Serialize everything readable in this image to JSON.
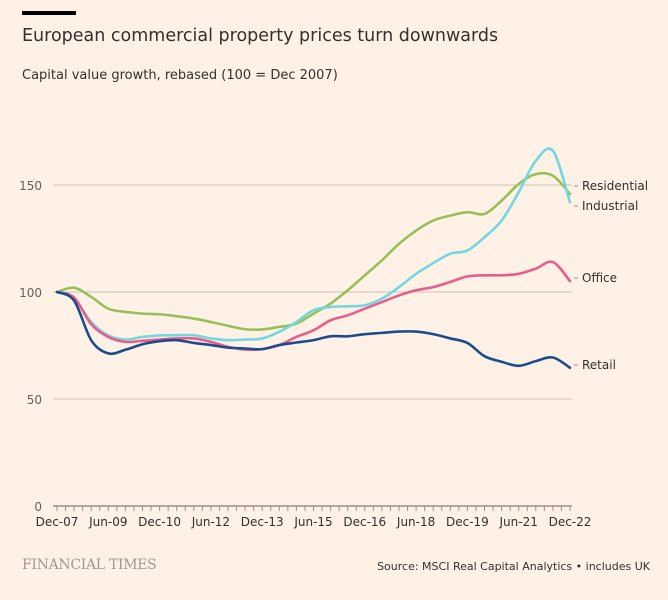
{
  "title": "European commercial property prices turn downwards",
  "subtitle": "Capital value growth, rebased (100 = Dec 2007)",
  "source": "Source: MSCI Real Capital Analytics • includes UK",
  "logo": "FINANCIAL TIMES",
  "chart_data": {
    "type": "line",
    "title": "European commercial property prices turn downwards",
    "subtitle": "Capital value growth, rebased (100 = Dec 2007)",
    "xlabel": "",
    "ylabel": "",
    "x_ticks": [
      "Dec-07",
      "Jun-09",
      "Dec-10",
      "Jun-12",
      "Dec-13",
      "Jun-15",
      "Dec-16",
      "Jun-18",
      "Dec-19",
      "Jun-21",
      "Dec-22"
    ],
    "y_ticks": [
      0,
      50,
      100,
      150
    ],
    "ylim": [
      0,
      170
    ],
    "grid": "horizontal",
    "legend": "direct labels at right",
    "x": [
      "Dec-07",
      "Jun-08",
      "Dec-08",
      "Jun-09",
      "Dec-09",
      "Jun-10",
      "Dec-10",
      "Jun-11",
      "Dec-11",
      "Jun-12",
      "Dec-12",
      "Jun-13",
      "Dec-13",
      "Jun-14",
      "Dec-14",
      "Jun-15",
      "Dec-15",
      "Jun-16",
      "Dec-16",
      "Jun-17",
      "Dec-17",
      "Jun-18",
      "Dec-18",
      "Jun-19",
      "Dec-19",
      "Jun-20",
      "Dec-20",
      "Jun-21",
      "Dec-21",
      "Jun-22",
      "Dec-22"
    ],
    "series": [
      {
        "name": "Residential",
        "color": "#96c15a",
        "values": [
          100,
          102,
          97.7,
          92.2,
          90.7,
          89.9,
          89.6,
          88.7,
          87.6,
          86,
          84.2,
          82.6,
          82.5,
          83.7,
          85.2,
          89.9,
          94.6,
          100.8,
          107.8,
          114.8,
          122.5,
          128.7,
          133.4,
          135.7,
          137.3,
          136.5,
          142.7,
          150.5,
          155.1,
          154.3,
          145.8
        ]
      },
      {
        "name": "Industrial",
        "color": "#72d8e0",
        "values": [
          100,
          96.9,
          86,
          79.8,
          77.8,
          79,
          79.7,
          79.8,
          79.8,
          78.3,
          77.5,
          77.8,
          78.3,
          81.4,
          86,
          91.5,
          93,
          93.3,
          93.8,
          96.9,
          102.3,
          108.5,
          113.5,
          117.9,
          119.4,
          125.6,
          133.4,
          146.6,
          161.3,
          166,
          141.9
        ]
      },
      {
        "name": "Office",
        "color": "#e95d8c",
        "values": [
          100,
          97.4,
          85,
          79,
          76.7,
          77.2,
          77.8,
          78.3,
          78.3,
          76.7,
          74.4,
          73.1,
          73.3,
          75.2,
          79,
          82.1,
          86.8,
          89.1,
          92.2,
          95.3,
          98.4,
          100.8,
          102.3,
          104.7,
          107.3,
          107.8,
          107.8,
          108.5,
          110.9,
          114,
          105.1
        ]
      },
      {
        "name": "Retail",
        "color": "#1a4d8f",
        "values": [
          100,
          96,
          77.5,
          71.3,
          73,
          75.6,
          77,
          77.5,
          76.2,
          75.2,
          74,
          73.6,
          73.3,
          75.2,
          76.4,
          77.5,
          79.3,
          79.3,
          80.3,
          80.9,
          81.5,
          81.5,
          80.3,
          78.3,
          76.2,
          70,
          67.4,
          65.5,
          67.7,
          69.4,
          64.6
        ]
      }
    ]
  }
}
